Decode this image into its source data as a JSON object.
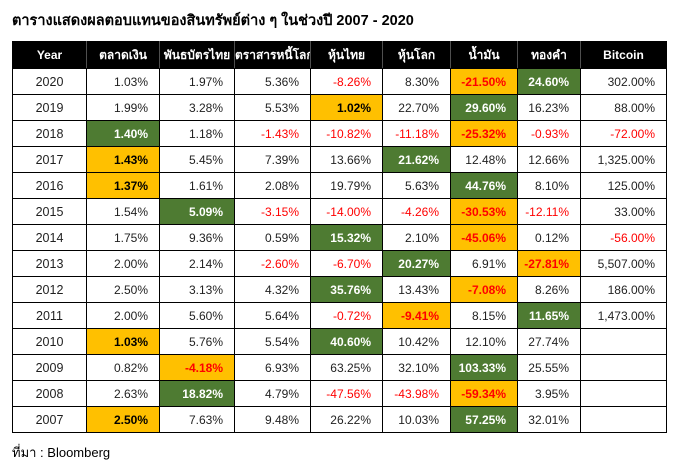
{
  "chart_data": {
    "type": "table",
    "title": "ตารางแสดงผลตอบแทนของสินทรัพย์ต่าง ๆ ในช่วงปี 2007 - 2020",
    "source": "ที่มา : Bloomberg",
    "legend": {
      "best_highlight_meaning": "best-return-of-year",
      "worst_highlight_meaning": "worst-return-of-year"
    },
    "colors": {
      "header_bg": "#000000",
      "header_text": "#ffffff",
      "best_bg": "#4e7b32",
      "best_text": "#ffffff",
      "worst_bg": "#ffc000",
      "negative_text": "#ff0000",
      "normal_text": "#1f1f1f"
    },
    "columns": [
      "Year",
      "ตลาดเงิน",
      "พันธบัตรไทย",
      "ตราสารหนี้โลก",
      "หุ้นไทย",
      "หุ้นโลก",
      "น้ำมัน",
      "ทองคำ",
      "Bitcoin"
    ],
    "rows": [
      {
        "year": "2020",
        "values": [
          "1.03%",
          "1.97%",
          "5.36%",
          "-8.26%",
          "8.30%",
          "-21.50%",
          "24.60%",
          "302.00%"
        ],
        "best": 6,
        "worst": 5
      },
      {
        "year": "2019",
        "values": [
          "1.99%",
          "3.28%",
          "5.53%",
          "1.02%",
          "22.70%",
          "29.60%",
          "16.23%",
          "88.00%"
        ],
        "best": 5,
        "worst": 3
      },
      {
        "year": "2018",
        "values": [
          "1.40%",
          "1.18%",
          "-1.43%",
          "-10.82%",
          "-11.18%",
          "-25.32%",
          "-0.93%",
          "-72.00%"
        ],
        "best": 0,
        "worst": 5
      },
      {
        "year": "2017",
        "values": [
          "1.43%",
          "5.45%",
          "7.39%",
          "13.66%",
          "21.62%",
          "12.48%",
          "12.66%",
          "1,325.00%"
        ],
        "best": 4,
        "worst": 0
      },
      {
        "year": "2016",
        "values": [
          "1.37%",
          "1.61%",
          "2.08%",
          "19.79%",
          "5.63%",
          "44.76%",
          "8.10%",
          "125.00%"
        ],
        "best": 5,
        "worst": 0
      },
      {
        "year": "2015",
        "values": [
          "1.54%",
          "5.09%",
          "-3.15%",
          "-14.00%",
          "-4.26%",
          "-30.53%",
          "-12.11%",
          "33.00%"
        ],
        "best": 1,
        "worst": 5
      },
      {
        "year": "2014",
        "values": [
          "1.75%",
          "9.36%",
          "0.59%",
          "15.32%",
          "2.10%",
          "-45.06%",
          "0.12%",
          "-56.00%"
        ],
        "best": 3,
        "worst": 5
      },
      {
        "year": "2013",
        "values": [
          "2.00%",
          "2.14%",
          "-2.60%",
          "-6.70%",
          "20.27%",
          "6.91%",
          "-27.81%",
          "5,507.00%"
        ],
        "best": 4,
        "worst": 6
      },
      {
        "year": "2012",
        "values": [
          "2.50%",
          "3.13%",
          "4.32%",
          "35.76%",
          "13.43%",
          "-7.08%",
          "8.26%",
          "186.00%"
        ],
        "best": 3,
        "worst": 5
      },
      {
        "year": "2011",
        "values": [
          "2.00%",
          "5.60%",
          "5.64%",
          "-0.72%",
          "-9.41%",
          "8.15%",
          "11.65%",
          "1,473.00%"
        ],
        "best": 6,
        "worst": 4
      },
      {
        "year": "2010",
        "values": [
          "1.03%",
          "5.76%",
          "5.54%",
          "40.60%",
          "10.42%",
          "12.10%",
          "27.74%",
          ""
        ],
        "best": 3,
        "worst": 0
      },
      {
        "year": "2009",
        "values": [
          "0.82%",
          "-4.18%",
          "6.93%",
          "63.25%",
          "32.10%",
          "103.33%",
          "25.55%",
          ""
        ],
        "best": 5,
        "worst": 1
      },
      {
        "year": "2008",
        "values": [
          "2.63%",
          "18.82%",
          "4.79%",
          "-47.56%",
          "-43.98%",
          "-59.34%",
          "3.95%",
          ""
        ],
        "best": 1,
        "worst": 5
      },
      {
        "year": "2007",
        "values": [
          "2.50%",
          "7.63%",
          "9.48%",
          "26.22%",
          "10.03%",
          "57.25%",
          "32.01%",
          ""
        ],
        "best": 5,
        "worst": 0
      }
    ]
  }
}
